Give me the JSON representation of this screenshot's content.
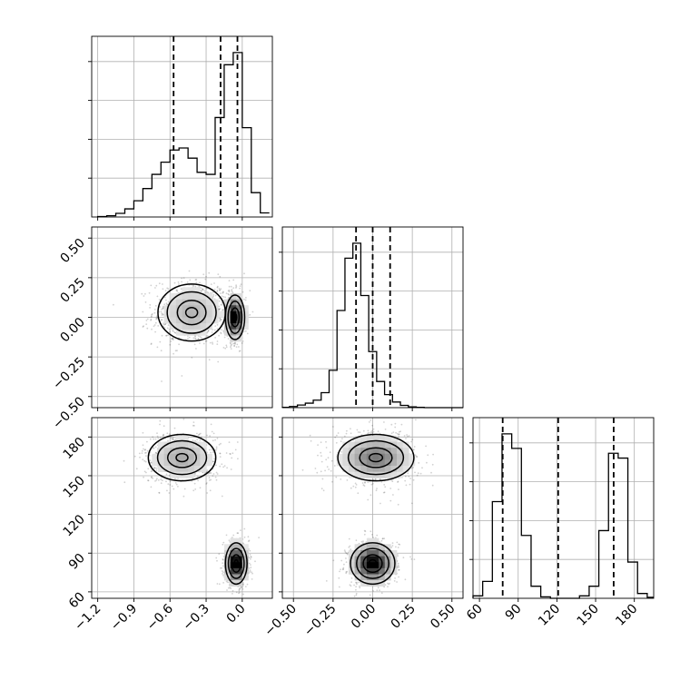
{
  "chart_data": {
    "type": "corner",
    "grid": true,
    "params": [
      {
        "id": "p1",
        "range": [
          -1.25,
          0.25
        ],
        "tick_values": [
          -1.2,
          -0.9,
          -0.6,
          -0.3,
          0.0
        ],
        "tick_labels": [
          "−1.2",
          "−0.9",
          "−0.6",
          "−0.3",
          "0.0"
        ],
        "quantiles": [
          -0.57,
          -0.18,
          -0.04
        ],
        "histogram": {
          "edges_start": -1.2,
          "bin_width": 0.075,
          "counts": [
            0.1,
            0.3,
            0.9,
            2.0,
            4.0,
            7.0,
            10.5,
            13.5,
            16.5,
            17.0,
            14.5,
            11.0,
            10.5,
            24.5,
            37.5,
            40.5,
            22.0,
            6.0,
            1.0
          ]
        }
      },
      {
        "id": "p2",
        "range": [
          -0.57,
          0.57
        ],
        "tick_values": [
          -0.5,
          -0.25,
          0.0,
          0.25,
          0.5
        ],
        "tick_labels": [
          "−0.50",
          "−0.25",
          "0.00",
          "0.25",
          "0.50"
        ],
        "quantiles": [
          -0.105,
          0.0,
          0.11
        ],
        "histogram": {
          "edges_start": -0.575,
          "bin_width": 0.05,
          "counts": [
            0.1,
            0.3,
            0.7,
            1.2,
            2.0,
            4.0,
            10.0,
            26.0,
            40.0,
            44.0,
            30.0,
            15.0,
            7.0,
            3.5,
            1.5,
            0.6,
            0.2,
            0.1,
            0.0,
            0.0,
            0.0,
            0.0,
            0.0
          ]
        }
      },
      {
        "id": "p3",
        "range": [
          55,
          195
        ],
        "tick_values": [
          60,
          90,
          120,
          150,
          180
        ],
        "tick_labels": [
          "60",
          "90",
          "120",
          "150",
          "180"
        ],
        "quantiles": [
          78,
          121,
          164
        ],
        "histogram": {
          "edges_start": 55,
          "bin_width": 7.5,
          "counts": [
            0.5,
            3.5,
            20.0,
            34.0,
            31.0,
            13.0,
            2.5,
            0.3,
            0.0,
            0.0,
            0.0,
            0.5,
            2.5,
            14.0,
            30.0,
            29.0,
            7.5,
            1.0,
            0.2
          ]
        }
      }
    ],
    "pairs": [
      {
        "x": "p1",
        "y": "p2",
        "clusters": [
          {
            "cx": -0.42,
            "cy": 0.03,
            "sx": 0.14,
            "sy": 0.09,
            "weight": 0.55
          },
          {
            "cx": -0.06,
            "cy": 0.0,
            "sx": 0.04,
            "sy": 0.07,
            "weight": 0.45
          }
        ]
      },
      {
        "x": "p1",
        "y": "p3",
        "clusters": [
          {
            "cx": -0.5,
            "cy": 164,
            "sx": 0.14,
            "sy": 9,
            "weight": 0.5
          },
          {
            "cx": -0.05,
            "cy": 82,
            "sx": 0.045,
            "sy": 8,
            "weight": 0.5
          }
        ]
      },
      {
        "x": "p2",
        "y": "p3",
        "clusters": [
          {
            "cx": 0.02,
            "cy": 164,
            "sx": 0.12,
            "sy": 9,
            "weight": 0.5
          },
          {
            "cx": 0.0,
            "cy": 82,
            "sx": 0.07,
            "sy": 8,
            "weight": 0.5
          }
        ]
      }
    ]
  }
}
